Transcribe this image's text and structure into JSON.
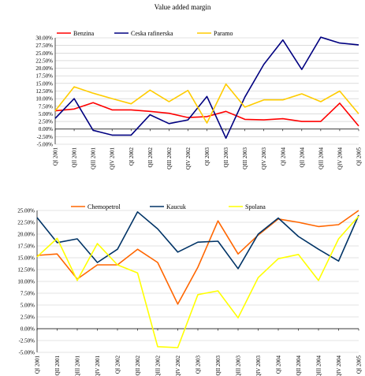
{
  "page_title": "Value added margin",
  "chart_data": [
    {
      "type": "line",
      "title": "Value added margin",
      "xlabel": "",
      "ylabel": "",
      "ylim": [
        -5,
        30
      ],
      "yticks": [
        "-5.00%",
        "-2.50%",
        "0.00%",
        "2.50%",
        "5.00%",
        "7.50%",
        "10.00%",
        "12.50%",
        "15.00%",
        "17.50%",
        "20.00%",
        "22.50%",
        "25.00%",
        "27.50%",
        "30.00%"
      ],
      "categories": [
        "QI 2001",
        "QII 2001",
        "QIII 2001",
        "QIV 2001",
        "QI 2002",
        "QII 2002",
        "QIII 2002",
        "QIV 2002",
        "QI 2003",
        "QII 2003",
        "QIII 2003",
        "QIV 2003",
        "QI 2004",
        "QII 2004",
        "QIII 2004",
        "QIV 2004",
        "QI 2005"
      ],
      "grid": true,
      "legend": "top",
      "series": [
        {
          "name": "Benzina",
          "color": "#ff0000",
          "values": [
            6.0,
            6.6,
            8.7,
            6.3,
            6.3,
            5.8,
            5.2,
            3.8,
            4.1,
            5.8,
            3.2,
            3.0,
            3.4,
            2.5,
            2.5,
            8.5,
            1.0
          ]
        },
        {
          "name": "Ceska rafinerska",
          "color": "#000080",
          "values": [
            3.5,
            10.0,
            -0.4,
            -2.0,
            -2.0,
            4.7,
            1.8,
            3.0,
            10.7,
            -3.0,
            10.5,
            21.3,
            29.3,
            19.6,
            30.2,
            28.3,
            27.7
          ]
        },
        {
          "name": "Paramo",
          "color": "#ffcc00",
          "values": [
            6.0,
            13.9,
            11.8,
            10.0,
            8.3,
            12.8,
            9.0,
            12.7,
            2.0,
            14.8,
            7.2,
            9.6,
            9.6,
            11.6,
            9.0,
            12.5,
            5.0
          ]
        }
      ]
    },
    {
      "type": "line",
      "title": "",
      "xlabel": "",
      "ylabel": "",
      "ylim": [
        -5,
        25
      ],
      "yticks": [
        "-5.00%",
        "-2.50%",
        "0.00%",
        "2.50%",
        "5.00%",
        "7.50%",
        "10.00%",
        "12.50%",
        "15.00%",
        "17.50%",
        "20.00%",
        "22.50%",
        "25.00%"
      ],
      "categories": [
        "QI 2001",
        "QII 2001",
        "QIII 2001",
        "QIV 2001",
        "QI 2002",
        "QII 2002",
        "QIII 2002",
        "QIV 2002",
        "QI 2003",
        "QII 2003",
        "QIII 2003",
        "QIV 2003",
        "QI 2004",
        "QII 2004",
        "QIII 2004",
        "QIV 2004",
        "QI 2005"
      ],
      "grid": true,
      "legend": "top",
      "series": [
        {
          "name": "Chemopetrol",
          "color": "#ff6600",
          "values": [
            15.5,
            15.8,
            10.5,
            13.5,
            13.5,
            16.8,
            14.0,
            5.2,
            13.0,
            22.8,
            15.8,
            19.8,
            23.2,
            22.5,
            21.6,
            22.0,
            25.0
          ]
        },
        {
          "name": "Kaucuk",
          "color": "#003366",
          "values": [
            23.5,
            18.2,
            19.0,
            14.0,
            16.8,
            24.7,
            21.1,
            16.2,
            18.3,
            18.5,
            12.7,
            20.0,
            23.4,
            19.5,
            16.8,
            14.3,
            24.0
          ]
        },
        {
          "name": "Spolana",
          "color": "#ffff00",
          "values": [
            15.2,
            19.1,
            10.2,
            18.0,
            13.5,
            11.8,
            -3.8,
            -4.0,
            7.2,
            8.0,
            2.3,
            10.8,
            14.8,
            15.7,
            10.2,
            19.0,
            23.8
          ]
        }
      ]
    }
  ]
}
